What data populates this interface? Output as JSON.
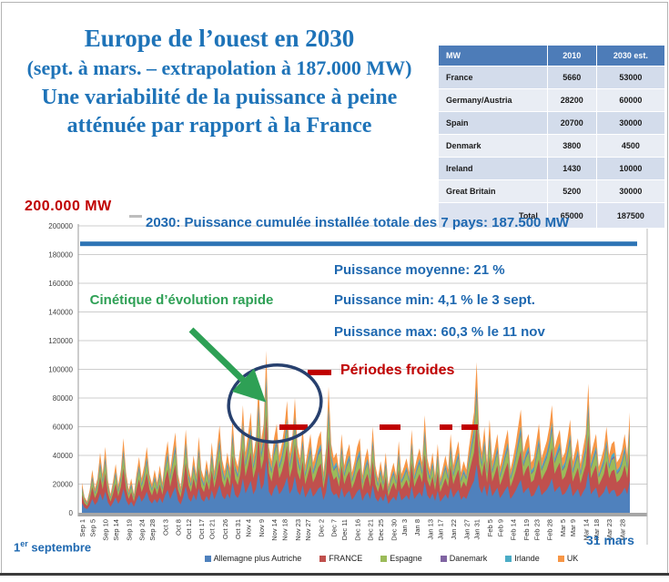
{
  "slide": {
    "title_line1": "Europe de l’ouest en 2030",
    "title_line2": "(sept. à mars. – extrapolation à 187.000 MW)",
    "title_line3": "Une variabilité de la puissance à peine atténuée par rapport à la France",
    "capacity_label": "200.000 MW"
  },
  "table": {
    "headers": [
      "MW",
      "2010",
      "2030 est."
    ],
    "rows": [
      [
        "France",
        "5660",
        "53000"
      ],
      [
        "Germany/Austria",
        "28200",
        "60000"
      ],
      [
        "Spain",
        "20700",
        "30000"
      ],
      [
        "Denmark",
        "3800",
        "4500"
      ],
      [
        "Ireland",
        "1430",
        "10000"
      ],
      [
        "Great Britain",
        "5200",
        "30000"
      ]
    ],
    "total_row": [
      "Total",
      "65000",
      "187500"
    ]
  },
  "chart_data": {
    "type": "area",
    "stacked": true,
    "title": "2030: Puissance cumulée installée totale des 7 pays: 187.500 MW",
    "ylim": [
      0,
      200000
    ],
    "y_ticks": [
      0,
      20000,
      40000,
      60000,
      80000,
      100000,
      120000,
      140000,
      160000,
      180000,
      200000
    ],
    "x_ticks": [
      "Sep 1",
      "Sep 5",
      "Sep 10",
      "Sep 14",
      "Sep 19",
      "Sep 24",
      "Sep 28",
      "Oct 3",
      "Oct 8",
      "Oct 12",
      "Oct 17",
      "Oct 21",
      "Oct 26",
      "Oct 31",
      "Nov 4",
      "Nov 9",
      "Nov 14",
      "Nov 18",
      "Nov 23",
      "Nov 27",
      "Dec 2",
      "Dec 7",
      "Dec 11",
      "Dec 16",
      "Dec 21",
      "Dec 25",
      "Dec 30",
      "Jan 3",
      "Jan 8",
      "Jan 13",
      "Jan 17",
      "Jan 22",
      "Jan 27",
      "Jan 31",
      "Feb 5",
      "Feb 9",
      "Feb 14",
      "Feb 19",
      "Feb 23",
      "Feb 28",
      "Mar 5",
      "Mar 9",
      "Mar 14",
      "Mar 18",
      "Mar 23",
      "Mar 28"
    ],
    "x_tick_days": [
      0,
      4,
      9,
      13,
      18,
      23,
      27,
      32,
      37,
      41,
      46,
      50,
      55,
      60,
      64,
      69,
      74,
      78,
      83,
      87,
      92,
      97,
      101,
      106,
      111,
      115,
      120,
      124,
      129,
      134,
      138,
      143,
      148,
      152,
      157,
      161,
      166,
      171,
      175,
      180,
      185,
      189,
      194,
      198,
      203,
      208
    ],
    "capacity_line_mw": 187500,
    "legend": [
      {
        "label": "Allemagne plus Autriche",
        "color": "#4F81BD",
        "fraction": 0.32
      },
      {
        "label": "FRANCE",
        "color": "#C0504D",
        "fraction": 0.283
      },
      {
        "label": "Espagne",
        "color": "#9BBB59",
        "fraction": 0.16
      },
      {
        "label": "Danemark",
        "color": "#8064A2",
        "fraction": 0.024
      },
      {
        "label": "Irlande",
        "color": "#4BACC6",
        "fraction": 0.053
      },
      {
        "label": "UK",
        "color": "#F79646",
        "fraction": 0.16
      }
    ],
    "totals_scale_mw": 1000,
    "daily_totals_thousand_mw": [
      21,
      11,
      8,
      16,
      30,
      17,
      24,
      42,
      27,
      46,
      23,
      13,
      22,
      34,
      19,
      30,
      52,
      28,
      16,
      24,
      13,
      27,
      39,
      24,
      33,
      46,
      27,
      20,
      30,
      21,
      33,
      21,
      38,
      50,
      30,
      44,
      56,
      27,
      18,
      34,
      58,
      32,
      24,
      40,
      27,
      53,
      30,
      24,
      37,
      26,
      49,
      29,
      44,
      61,
      37,
      29,
      42,
      31,
      66,
      39,
      32,
      45,
      75,
      42,
      55,
      70,
      40,
      52,
      90,
      50,
      62,
      113,
      46,
      36,
      52,
      62,
      40,
      48,
      60,
      78,
      41,
      52,
      80,
      47,
      38,
      60,
      33,
      44,
      55,
      35,
      42,
      52,
      57,
      28,
      45,
      88,
      48,
      38,
      42,
      30,
      55,
      33,
      42,
      48,
      28,
      36,
      46,
      52,
      26,
      38,
      45,
      30,
      60,
      33,
      24,
      36,
      25,
      42,
      19,
      28,
      35,
      26,
      50,
      27,
      32,
      38,
      28,
      58,
      30,
      38,
      45,
      35,
      68,
      38,
      30,
      42,
      26,
      48,
      24,
      32,
      40,
      30,
      55,
      33,
      42,
      50,
      28,
      36,
      30,
      45,
      58,
      70,
      105,
      56,
      42,
      60,
      35,
      65,
      36,
      45,
      55,
      32,
      40,
      50,
      58,
      30,
      38,
      48,
      60,
      72,
      42,
      50,
      55,
      35,
      38,
      50,
      62,
      38,
      44,
      50,
      60,
      75,
      45,
      52,
      58,
      38,
      42,
      52,
      65,
      36,
      44,
      52,
      34,
      45,
      55,
      90,
      40,
      48,
      55,
      32,
      38,
      45,
      60,
      40,
      48,
      50,
      35,
      38,
      44,
      55,
      40,
      70
    ],
    "annotations": {
      "mean": "Puissance moyenne: 21 %",
      "min": "Puissance min: 4,1 % le 3 sept.",
      "max": "Puissance max: 60,3 % le 11 nov",
      "kinetics": "Cinétique d’évolution rapide",
      "cold_periods": "Périodes froides"
    },
    "x_axis_labels": {
      "start_day": "1",
      "start_sup": "er",
      "start_rest": " septembre",
      "end": "31 mars"
    }
  },
  "colors": {
    "title_blue": "#1e73b8",
    "annotation_blue": "#1e68b0",
    "alert_red": "#c00000",
    "kinetics_green": "#2ea055",
    "ellipse_navy": "#27406e",
    "capacity_line_blue": "#2e74b5",
    "grid_gray": "#cdcdcd",
    "axis_gray": "#a6a6a6"
  }
}
